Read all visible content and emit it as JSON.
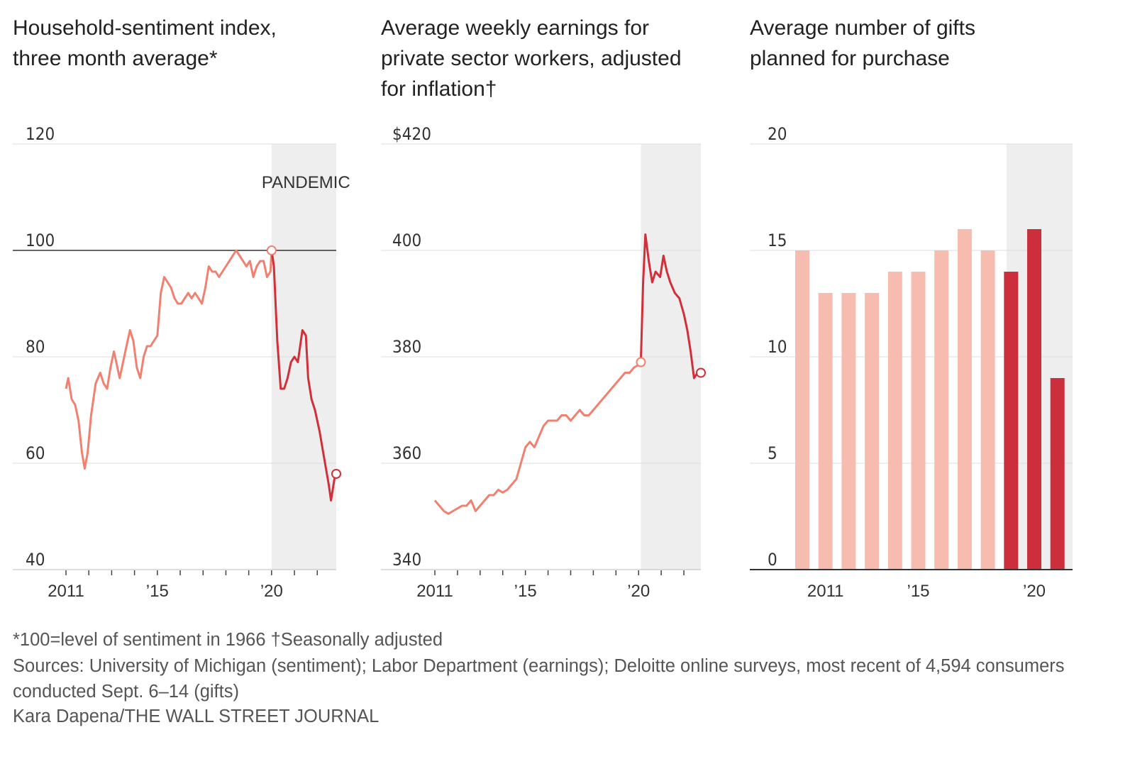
{
  "titles": {
    "sentiment": "Household-sentiment index,\nthree month average*",
    "earnings": "Average weekly earnings for\nprivate sector workers, adjusted\nfor inflation†",
    "gifts": "Average number of gifts\nplanned for purchase"
  },
  "footnotes": {
    "note": "*100=level of sentiment in 1966    †Seasonally adjusted",
    "sources": "Sources: University of Michigan (sentiment); Labor Department (earnings); Deloitte online surveys, most recent of 4,594 consumers conducted Sept. 6–14 (gifts)",
    "credit": "Kara Dapena/THE WALL STREET JOURNAL"
  },
  "colors": {
    "pre": "#f08070",
    "pandemic": "#d0303a",
    "bar_pre": "#f7bcb0",
    "bar_pandemic": "#cc2f3c",
    "shade": "#eeeeef"
  },
  "chart_data": [
    {
      "type": "line",
      "title": "Household-sentiment index, three month average*",
      "ylim": [
        40,
        120
      ],
      "yticks": [
        "40",
        "60",
        "80",
        "100",
        "120"
      ],
      "xticks": [
        "2011",
        "’15",
        "’20"
      ],
      "xlim": [
        2011,
        2022.83
      ],
      "shade_start": 2020.0,
      "shade_label": "PANDEMIC",
      "reference_line": 100,
      "points": [
        [
          2011.0,
          74
        ],
        [
          2011.1,
          76
        ],
        [
          2011.25,
          72
        ],
        [
          2011.4,
          71
        ],
        [
          2011.55,
          68
        ],
        [
          2011.7,
          62
        ],
        [
          2011.82,
          59
        ],
        [
          2011.95,
          62
        ],
        [
          2012.1,
          69
        ],
        [
          2012.3,
          75
        ],
        [
          2012.5,
          77
        ],
        [
          2012.65,
          75
        ],
        [
          2012.8,
          74
        ],
        [
          2012.95,
          78
        ],
        [
          2013.1,
          81
        ],
        [
          2013.2,
          79
        ],
        [
          2013.35,
          76
        ],
        [
          2013.5,
          79
        ],
        [
          2013.65,
          82
        ],
        [
          2013.8,
          85
        ],
        [
          2013.95,
          83
        ],
        [
          2014.1,
          78
        ],
        [
          2014.25,
          76
        ],
        [
          2014.4,
          80
        ],
        [
          2014.55,
          82
        ],
        [
          2014.7,
          82
        ],
        [
          2014.85,
          83
        ],
        [
          2015.0,
          84
        ],
        [
          2015.15,
          92
        ],
        [
          2015.3,
          95
        ],
        [
          2015.45,
          94
        ],
        [
          2015.6,
          93
        ],
        [
          2015.75,
          91
        ],
        [
          2015.9,
          90
        ],
        [
          2016.05,
          90
        ],
        [
          2016.2,
          91
        ],
        [
          2016.35,
          92
        ],
        [
          2016.5,
          91
        ],
        [
          2016.65,
          92
        ],
        [
          2016.8,
          91
        ],
        [
          2016.95,
          90
        ],
        [
          2017.1,
          93
        ],
        [
          2017.25,
          97
        ],
        [
          2017.4,
          96
        ],
        [
          2017.55,
          96
        ],
        [
          2017.7,
          95
        ],
        [
          2017.85,
          96
        ],
        [
          2018.0,
          97
        ],
        [
          2018.15,
          98
        ],
        [
          2018.3,
          99
        ],
        [
          2018.45,
          100
        ],
        [
          2018.6,
          99
        ],
        [
          2018.75,
          98
        ],
        [
          2018.9,
          97
        ],
        [
          2019.05,
          98
        ],
        [
          2019.2,
          95
        ],
        [
          2019.35,
          97
        ],
        [
          2019.5,
          98
        ],
        [
          2019.65,
          98
        ],
        [
          2019.8,
          95
        ],
        [
          2019.95,
          96
        ],
        [
          2020.0,
          100
        ],
        [
          2020.1,
          97
        ],
        [
          2020.25,
          83
        ],
        [
          2020.4,
          74
        ],
        [
          2020.55,
          74
        ],
        [
          2020.7,
          76
        ],
        [
          2020.85,
          79
        ],
        [
          2021.0,
          80
        ],
        [
          2021.15,
          79
        ],
        [
          2021.35,
          85
        ],
        [
          2021.5,
          84
        ],
        [
          2021.6,
          76
        ],
        [
          2021.75,
          72
        ],
        [
          2021.9,
          70
        ],
        [
          2022.1,
          66
        ],
        [
          2022.3,
          61
        ],
        [
          2022.5,
          56
        ],
        [
          2022.6,
          53
        ],
        [
          2022.75,
          57
        ],
        [
          2022.83,
          58
        ]
      ]
    },
    {
      "type": "line",
      "title": "Average weekly earnings for private sector workers, adjusted for inflation†",
      "ylim": [
        340,
        420
      ],
      "yticks": [
        "340",
        "360",
        "380",
        "400",
        "$420"
      ],
      "xticks": [
        "2011",
        "’15",
        "’20"
      ],
      "xlim": [
        2011,
        2022.75
      ],
      "shade_start": 2020.1,
      "points": [
        [
          2011.0,
          353
        ],
        [
          2011.2,
          352
        ],
        [
          2011.4,
          351
        ],
        [
          2011.6,
          350.5
        ],
        [
          2011.8,
          351
        ],
        [
          2012.0,
          351.5
        ],
        [
          2012.2,
          352
        ],
        [
          2012.4,
          352
        ],
        [
          2012.6,
          353
        ],
        [
          2012.8,
          351
        ],
        [
          2013.0,
          352
        ],
        [
          2013.2,
          353
        ],
        [
          2013.4,
          354
        ],
        [
          2013.6,
          354
        ],
        [
          2013.8,
          355
        ],
        [
          2014.0,
          354.5
        ],
        [
          2014.2,
          355
        ],
        [
          2014.4,
          356
        ],
        [
          2014.6,
          357
        ],
        [
          2014.8,
          360
        ],
        [
          2015.0,
          363
        ],
        [
          2015.2,
          364
        ],
        [
          2015.4,
          363
        ],
        [
          2015.6,
          365
        ],
        [
          2015.8,
          367
        ],
        [
          2016.0,
          368
        ],
        [
          2016.2,
          368
        ],
        [
          2016.4,
          368
        ],
        [
          2016.6,
          369
        ],
        [
          2016.8,
          369
        ],
        [
          2017.0,
          368
        ],
        [
          2017.2,
          369
        ],
        [
          2017.4,
          370
        ],
        [
          2017.6,
          369
        ],
        [
          2017.8,
          369
        ],
        [
          2018.0,
          370
        ],
        [
          2018.2,
          371
        ],
        [
          2018.4,
          372
        ],
        [
          2018.6,
          373
        ],
        [
          2018.8,
          374
        ],
        [
          2019.0,
          375
        ],
        [
          2019.2,
          376
        ],
        [
          2019.4,
          377
        ],
        [
          2019.6,
          377
        ],
        [
          2019.8,
          378
        ],
        [
          2020.0,
          378.5
        ],
        [
          2020.1,
          379
        ],
        [
          2020.2,
          394
        ],
        [
          2020.3,
          403
        ],
        [
          2020.45,
          398
        ],
        [
          2020.6,
          394
        ],
        [
          2020.75,
          396
        ],
        [
          2020.95,
          395
        ],
        [
          2021.1,
          399
        ],
        [
          2021.25,
          396
        ],
        [
          2021.4,
          394
        ],
        [
          2021.6,
          392
        ],
        [
          2021.8,
          391
        ],
        [
          2022.0,
          388
        ],
        [
          2022.15,
          385
        ],
        [
          2022.3,
          381
        ],
        [
          2022.45,
          376
        ],
        [
          2022.6,
          377
        ],
        [
          2022.75,
          377
        ]
      ]
    },
    {
      "type": "bar",
      "title": "Average number of gifts planned for purchase",
      "ylim": [
        0,
        20
      ],
      "yticks": [
        "0",
        "5",
        "10",
        "15",
        "20"
      ],
      "xticks": [
        "2011",
        "’15",
        "’20"
      ],
      "categories": [
        "2010",
        "2011",
        "2012",
        "2013",
        "2014",
        "2015",
        "2016",
        "2017",
        "2018",
        "2019",
        "2020",
        "2021"
      ],
      "values": [
        15,
        13,
        13,
        13,
        14,
        14,
        15,
        16,
        15,
        14,
        16,
        9
      ],
      "pandemic_from_index": 9
    }
  ]
}
